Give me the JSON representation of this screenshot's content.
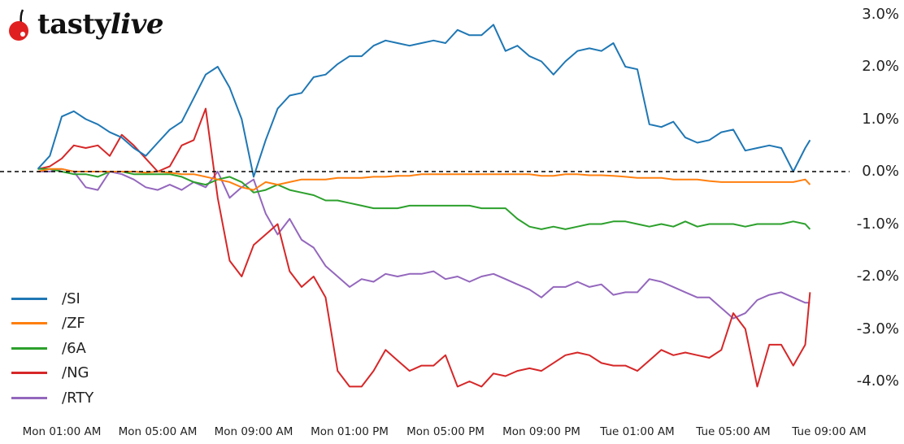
{
  "logo": {
    "text_main": "tasty",
    "text_italic": "live",
    "cherry_color": "#e02020"
  },
  "chart_data": {
    "type": "line",
    "title": "",
    "xlabel": "",
    "ylabel": "",
    "y_unit": "%",
    "ylim": [
      -4.4,
      3.0
    ],
    "xlim_hours_from_mon_0000": [
      -1.0,
      33.2
    ],
    "grid": false,
    "legend_position": "lower left",
    "reference_line": {
      "y": 0.0,
      "style": "dashed",
      "color": "#000000"
    },
    "y_ticks": [
      "3.0%",
      "2.0%",
      "1.0%",
      "0.0%",
      "-1.0%",
      "-2.0%",
      "-3.0%",
      "-4.0%"
    ],
    "y_tick_values": [
      3.0,
      2.0,
      1.0,
      0.0,
      -1.0,
      -2.0,
      -3.0,
      -4.0
    ],
    "x_ticks": [
      "Mon 01:00 AM",
      "Mon 05:00 AM",
      "Mon 09:00 AM",
      "Mon 01:00 PM",
      "Mon 05:00 PM",
      "Mon 09:00 PM",
      "Tue 01:00 AM",
      "Tue 05:00 AM",
      "Tue 09:00 AM"
    ],
    "x_tick_hours": [
      1,
      5,
      9,
      13,
      17,
      21,
      25,
      29,
      33
    ],
    "x_hours": [
      0.0,
      0.5,
      1.0,
      1.5,
      2.0,
      2.5,
      3.0,
      3.5,
      4.0,
      4.5,
      5.0,
      5.5,
      6.0,
      6.5,
      7.0,
      7.5,
      8.0,
      8.5,
      9.0,
      9.5,
      10.0,
      10.5,
      11.0,
      11.5,
      12.0,
      12.5,
      13.0,
      13.5,
      14.0,
      14.5,
      15.0,
      15.5,
      16.0,
      16.5,
      17.0,
      17.5,
      18.0,
      18.5,
      19.0,
      19.5,
      20.0,
      20.5,
      21.0,
      21.5,
      22.0,
      22.5,
      23.0,
      23.5,
      24.0,
      24.5,
      25.0,
      25.5,
      26.0,
      26.5,
      27.0,
      27.5,
      28.0,
      28.5,
      29.0,
      29.5,
      30.0,
      30.5,
      31.0,
      31.5,
      32.0,
      32.2
    ],
    "series": [
      {
        "name": "/SI",
        "color": "#1f77b4",
        "values": [
          0.05,
          0.3,
          1.05,
          1.15,
          1.0,
          0.9,
          0.75,
          0.65,
          0.45,
          0.3,
          0.55,
          0.8,
          0.95,
          1.4,
          1.85,
          2.0,
          1.6,
          1.0,
          -0.1,
          0.6,
          1.2,
          1.45,
          1.5,
          1.8,
          1.85,
          2.05,
          2.2,
          2.2,
          2.4,
          2.5,
          2.45,
          2.4,
          2.45,
          2.5,
          2.45,
          2.7,
          2.6,
          2.6,
          2.8,
          2.3,
          2.4,
          2.2,
          2.1,
          1.85,
          2.1,
          2.3,
          2.35,
          2.3,
          2.45,
          2.0,
          1.95,
          0.9,
          0.85,
          0.95,
          0.65,
          0.55,
          0.6,
          0.75,
          0.8,
          0.4,
          0.45,
          0.5,
          0.45,
          0.0,
          0.45,
          0.6
        ]
      },
      {
        "name": "/ZF",
        "color": "#ff7f0e",
        "values": [
          0.0,
          0.05,
          0.05,
          0.0,
          0.0,
          0.0,
          0.0,
          0.0,
          0.0,
          -0.02,
          0.0,
          -0.02,
          -0.05,
          -0.05,
          -0.1,
          -0.15,
          -0.2,
          -0.3,
          -0.35,
          -0.2,
          -0.25,
          -0.2,
          -0.15,
          -0.15,
          -0.15,
          -0.12,
          -0.12,
          -0.12,
          -0.1,
          -0.1,
          -0.08,
          -0.08,
          -0.05,
          -0.05,
          -0.05,
          -0.05,
          -0.05,
          -0.05,
          -0.05,
          -0.05,
          -0.05,
          -0.05,
          -0.08,
          -0.08,
          -0.05,
          -0.05,
          -0.07,
          -0.07,
          -0.08,
          -0.1,
          -0.12,
          -0.12,
          -0.12,
          -0.15,
          -0.15,
          -0.15,
          -0.18,
          -0.2,
          -0.2,
          -0.2,
          -0.2,
          -0.2,
          -0.2,
          -0.2,
          -0.15,
          -0.25
        ]
      },
      {
        "name": "/6A",
        "color": "#2ca02c",
        "values": [
          0.05,
          0.05,
          0.0,
          -0.05,
          -0.05,
          -0.1,
          0.0,
          0.0,
          -0.05,
          -0.05,
          -0.05,
          -0.05,
          -0.1,
          -0.2,
          -0.25,
          -0.15,
          -0.1,
          -0.2,
          -0.4,
          -0.35,
          -0.25,
          -0.35,
          -0.4,
          -0.45,
          -0.55,
          -0.55,
          -0.6,
          -0.65,
          -0.7,
          -0.7,
          -0.7,
          -0.65,
          -0.65,
          -0.65,
          -0.65,
          -0.65,
          -0.65,
          -0.7,
          -0.7,
          -0.7,
          -0.9,
          -1.05,
          -1.1,
          -1.05,
          -1.1,
          -1.05,
          -1.0,
          -1.0,
          -0.95,
          -0.95,
          -1.0,
          -1.05,
          -1.0,
          -1.05,
          -0.95,
          -1.05,
          -1.0,
          -1.0,
          -1.0,
          -1.05,
          -1.0,
          -1.0,
          -1.0,
          -0.95,
          -1.0,
          -1.1
        ]
      },
      {
        "name": "/NG",
        "color": "#d62728",
        "values": [
          0.05,
          0.1,
          0.25,
          0.5,
          0.45,
          0.5,
          0.3,
          0.7,
          0.5,
          0.25,
          0.0,
          0.1,
          0.5,
          0.6,
          1.2,
          -0.5,
          -1.7,
          -2.0,
          -1.4,
          -1.2,
          -1.0,
          -1.9,
          -2.2,
          -2.0,
          -2.4,
          -3.8,
          -4.1,
          -4.1,
          -3.8,
          -3.4,
          -3.6,
          -3.8,
          -3.7,
          -3.7,
          -3.5,
          -4.1,
          -4.0,
          -4.1,
          -3.85,
          -3.9,
          -3.8,
          -3.75,
          -3.8,
          -3.65,
          -3.5,
          -3.45,
          -3.5,
          -3.65,
          -3.7,
          -3.7,
          -3.8,
          -3.6,
          -3.4,
          -3.5,
          -3.45,
          -3.5,
          -3.55,
          -3.4,
          -2.7,
          -3.0,
          -4.1,
          -3.3,
          -3.3,
          -3.7,
          -3.3,
          -2.3
        ]
      },
      {
        "name": "/RTY",
        "color": "#9467bd",
        "values": [
          0.0,
          0.0,
          0.05,
          0.0,
          -0.3,
          -0.35,
          0.0,
          -0.05,
          -0.15,
          -0.3,
          -0.35,
          -0.25,
          -0.35,
          -0.2,
          -0.3,
          0.0,
          -0.5,
          -0.3,
          -0.15,
          -0.8,
          -1.2,
          -0.9,
          -1.3,
          -1.45,
          -1.8,
          -2.0,
          -2.2,
          -2.05,
          -2.1,
          -1.95,
          -2.0,
          -1.95,
          -1.95,
          -1.9,
          -2.05,
          -2.0,
          -2.1,
          -2.0,
          -1.95,
          -2.05,
          -2.15,
          -2.25,
          -2.4,
          -2.2,
          -2.2,
          -2.1,
          -2.2,
          -2.15,
          -2.35,
          -2.3,
          -2.3,
          -2.05,
          -2.1,
          -2.2,
          -2.3,
          -2.4,
          -2.4,
          -2.6,
          -2.8,
          -2.7,
          -2.45,
          -2.35,
          -2.3,
          -2.4,
          -2.5,
          -2.5
        ]
      }
    ]
  }
}
